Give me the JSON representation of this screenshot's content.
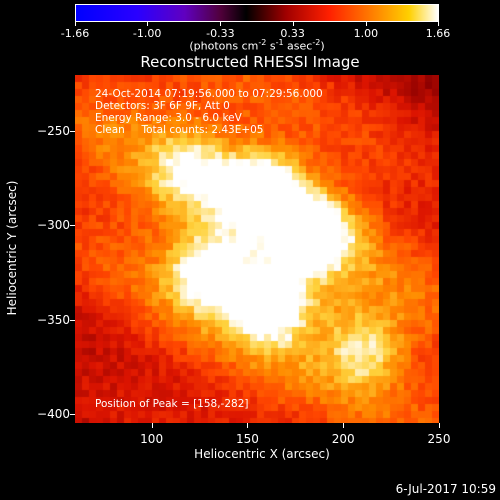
{
  "colorbar": {
    "tick_labels": [
      "-1.66",
      "-1.00",
      "-0.33",
      "0.33",
      "1.00",
      "1.66"
    ],
    "tick_values": [
      -1.66,
      -1.0,
      -0.33,
      0.33,
      1.0,
      1.66
    ],
    "range": [
      -1.66,
      1.66
    ],
    "units_main": "(photons cm",
    "units_e1": "-2",
    "units_mid": " s",
    "units_e2": "-1",
    "units_mid2": " asec",
    "units_e3": "-2",
    "units_end": ")"
  },
  "title": "Reconstructed RHESSI Image",
  "info": {
    "line1": "24-Oct-2014 07:19:56.000 to 07:29:56.000",
    "line2": "Detectors: 3F 6F 9F, Att 0",
    "line3": "Energy Range: 3.0 - 6.0 keV",
    "line4": "Clean     Total counts: 2.43E+05",
    "peak": "Position of Peak = [158,-282]"
  },
  "chart_data": {
    "type": "heatmap",
    "title": "Reconstructed RHESSI Image",
    "xlabel": "Heliocentric X (arcsec)",
    "ylabel": "Heliocentric Y (arcsec)",
    "xlim": [
      60,
      250
    ],
    "ylim": [
      -405,
      -220
    ],
    "x_ticks": [
      100,
      150,
      200,
      250
    ],
    "x_tick_labels": [
      "100",
      "150",
      "200",
      "250"
    ],
    "y_ticks": [
      -250,
      -300,
      -350,
      -400
    ],
    "y_tick_labels": [
      "−250",
      "−300",
      "−350",
      "−400"
    ],
    "colorscale": "red-temperature",
    "peak": [
      158,
      -282
    ],
    "sources": [
      {
        "x": 158,
        "y": -282,
        "intensity": 1.0
      },
      {
        "x": 185,
        "y": -303,
        "intensity": 0.9
      },
      {
        "x": 162,
        "y": -341,
        "intensity": 0.95
      },
      {
        "x": 130,
        "y": -325,
        "intensity": 0.85
      },
      {
        "x": 212,
        "y": -365,
        "intensity": 0.55
      },
      {
        "x": 120,
        "y": -270,
        "intensity": 0.45
      }
    ]
  },
  "footer": {
    "date": "6-Jul-2017 10:59"
  }
}
